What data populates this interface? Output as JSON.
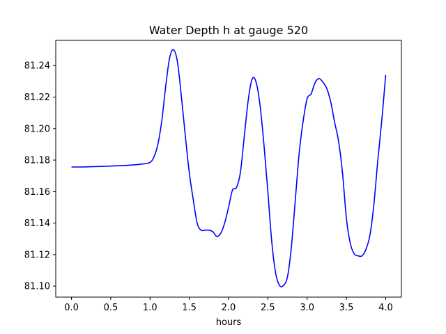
{
  "chart_data": {
    "type": "line",
    "title": "Water Depth h at gauge 520",
    "xlabel": "hours",
    "ylabel": "",
    "xlim": [
      -0.2,
      4.2
    ],
    "ylim": [
      81.093,
      81.256
    ],
    "xticks": [
      0.0,
      0.5,
      1.0,
      1.5,
      2.0,
      2.5,
      3.0,
      3.5,
      4.0
    ],
    "xtick_labels": [
      "0.0",
      "0.5",
      "1.0",
      "1.5",
      "2.0",
      "2.5",
      "3.0",
      "3.5",
      "4.0"
    ],
    "yticks": [
      81.1,
      81.12,
      81.14,
      81.16,
      81.18,
      81.2,
      81.22,
      81.24
    ],
    "ytick_labels": [
      "81.10",
      "81.12",
      "81.14",
      "81.16",
      "81.18",
      "81.20",
      "81.22",
      "81.24"
    ],
    "grid": false,
    "series": [
      {
        "color": "#0000ff",
        "x": [
          0.0,
          0.2,
          0.5,
          0.75,
          0.9,
          1.0,
          1.05,
          1.1,
          1.15,
          1.2,
          1.25,
          1.3,
          1.35,
          1.4,
          1.45,
          1.5,
          1.55,
          1.6,
          1.65,
          1.7,
          1.75,
          1.8,
          1.85,
          1.9,
          1.95,
          2.0,
          2.05,
          2.1,
          2.15,
          2.2,
          2.25,
          2.3,
          2.35,
          2.4,
          2.45,
          2.5,
          2.55,
          2.6,
          2.65,
          2.7,
          2.75,
          2.8,
          2.85,
          2.9,
          2.95,
          3.0,
          3.05,
          3.1,
          3.15,
          3.2,
          3.25,
          3.3,
          3.35,
          3.4,
          3.45,
          3.5,
          3.55,
          3.6,
          3.65,
          3.7,
          3.75,
          3.8,
          3.85,
          3.9,
          3.95,
          4.0
        ],
        "y": [
          81.1756,
          81.1757,
          81.1762,
          81.1768,
          81.1775,
          81.1785,
          81.182,
          81.19,
          81.205,
          81.227,
          81.245,
          81.25,
          81.242,
          81.22,
          81.195,
          81.172,
          81.155,
          81.14,
          81.1355,
          81.1355,
          81.1355,
          81.1345,
          81.1315,
          81.1335,
          81.14,
          81.15,
          81.161,
          81.1625,
          81.172,
          81.195,
          81.218,
          81.2315,
          81.2295,
          81.215,
          81.19,
          81.16,
          81.128,
          81.108,
          81.1003,
          81.1005,
          81.106,
          81.125,
          81.155,
          81.185,
          81.205,
          81.219,
          81.222,
          81.229,
          81.2318,
          81.2295,
          81.2255,
          81.217,
          81.204,
          81.192,
          81.172,
          81.143,
          81.127,
          81.1205,
          81.1192,
          81.1192,
          81.1235,
          81.1325,
          81.152,
          81.18,
          81.205,
          81.234
        ]
      }
    ]
  }
}
